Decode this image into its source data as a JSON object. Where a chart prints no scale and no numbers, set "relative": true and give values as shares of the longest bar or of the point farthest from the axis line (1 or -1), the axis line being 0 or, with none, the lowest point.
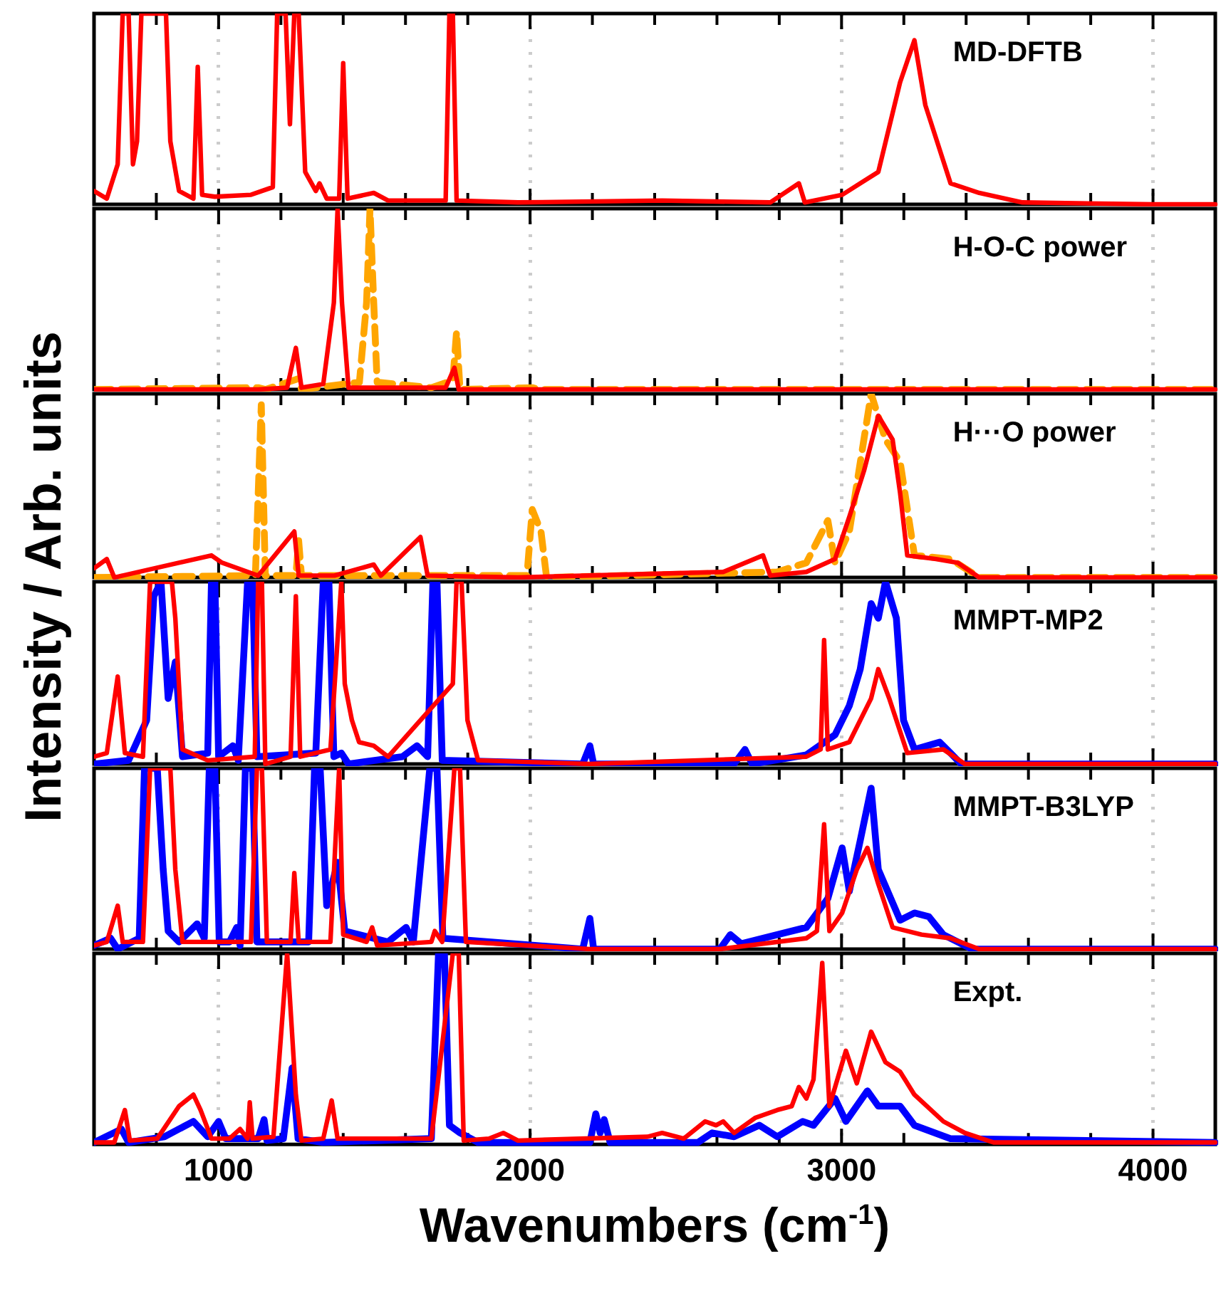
{
  "chart_data": [
    {
      "type": "line",
      "title": "MD-DFTB",
      "ylabel": "Intensity / Arb. units",
      "relative": true,
      "xlim": [
        600,
        4200
      ],
      "xticks": [
        {
          "value": 800,
          "label": null
        },
        1000,
        {
          "value": 1200,
          "label": null
        },
        {
          "value": 1400,
          "label": null
        },
        {
          "value": 1600,
          "label": null
        },
        {
          "value": 1800,
          "label": null
        },
        2000,
        {
          "value": 2200,
          "label": null
        },
        {
          "value": 2400,
          "label": null
        },
        {
          "value": 2600,
          "label": null
        },
        {
          "value": 2800,
          "label": null
        },
        3000,
        {
          "value": 3200,
          "label": null
        },
        {
          "value": 3400,
          "label": null
        },
        {
          "value": 3600,
          "label": null
        },
        {
          "value": 3800,
          "label": null
        },
        4000
      ],
      "tick_labels": false,
      "grid": "x",
      "series": [
        {
          "color": "#ff0000",
          "x": [
            600,
            641,
            676,
            692,
            711,
            725,
            738,
            752,
            766,
            831,
            845,
            873,
            919,
            933,
            947,
            988,
            1104,
            1174,
            1188,
            1215,
            1229,
            1243,
            1257,
            1278,
            1312,
            1324,
            1347,
            1387,
            1400,
            1414,
            1498,
            1544,
            1729,
            1741,
            1752,
            1764,
            1961,
            2424,
            2771,
            2863,
            2882,
            3002,
            3118,
            3188,
            3234,
            3269,
            3350,
            3442,
            3581,
            3998,
            4200
          ],
          "values": [
            0.07,
            0.03,
            0.21,
            1,
            1,
            0.21,
            0.33,
            1,
            1,
            1,
            0.33,
            0.07,
            0.03,
            0.72,
            0.05,
            0.04,
            0.05,
            0.09,
            1,
            1,
            0.42,
            1,
            1,
            0.17,
            0.07,
            0.11,
            0.03,
            0.03,
            0.74,
            0.03,
            0.06,
            0.02,
            0.02,
            1,
            1,
            0.02,
            0.01,
            0.02,
            0.01,
            0.11,
            0.01,
            0.05,
            0.17,
            0.64,
            0.86,
            0.52,
            0.11,
            0.06,
            0.01,
            0,
            0
          ]
        }
      ]
    },
    {
      "type": "line",
      "title": "H-O-C power",
      "relative": true,
      "xlim": [
        600,
        4200
      ],
      "xticks": [
        {
          "value": 800,
          "label": null
        },
        1000,
        {
          "value": 1200,
          "label": null
        },
        {
          "value": 1400,
          "label": null
        },
        {
          "value": 1600,
          "label": null
        },
        {
          "value": 1800,
          "label": null
        },
        2000,
        {
          "value": 2200,
          "label": null
        },
        {
          "value": 2400,
          "label": null
        },
        {
          "value": 2600,
          "label": null
        },
        {
          "value": 2800,
          "label": null
        },
        3000,
        {
          "value": 3200,
          "label": null
        },
        {
          "value": 3400,
          "label": null
        },
        {
          "value": 3600,
          "label": null
        },
        {
          "value": 3800,
          "label": null
        },
        4000
      ],
      "tick_labels": false,
      "grid": "x",
      "series": [
        {
          "color": "#ff0000",
          "x": [
            600,
            1127,
            1220,
            1248,
            1266,
            1336,
            1370,
            1382,
            1396,
            1417,
            1498,
            1729,
            1757,
            1771,
            2007,
            4200
          ],
          "values": [
            0,
            0,
            0.01,
            0.23,
            0.01,
            0.03,
            0.48,
            1,
            0.48,
            0.01,
            0.01,
            0.01,
            0.12,
            0,
            0,
            0
          ]
        },
        {
          "color": "#ffa500",
          "line_style": "dashed",
          "x": [
            600,
            1127,
            1150,
            1257,
            1266,
            1452,
            1475,
            1486,
            1498,
            1509,
            1683,
            1752,
            1764,
            1775,
            2007,
            2030,
            4200
          ],
          "values": [
            0,
            0.01,
            0,
            0.06,
            0,
            0.04,
            0.48,
            1,
            0.48,
            0.04,
            0.01,
            0.05,
            0.32,
            0,
            0.01,
            0,
            0
          ]
        }
      ]
    },
    {
      "type": "line",
      "title": "H···O power",
      "relative": true,
      "xlim": [
        600,
        4200
      ],
      "xticks": [
        {
          "value": 800,
          "label": null
        },
        1000,
        {
          "value": 1200,
          "label": null
        },
        {
          "value": 1400,
          "label": null
        },
        {
          "value": 1600,
          "label": null
        },
        {
          "value": 1800,
          "label": null
        },
        2000,
        {
          "value": 2200,
          "label": null
        },
        {
          "value": 2400,
          "label": null
        },
        {
          "value": 2600,
          "label": null
        },
        {
          "value": 2800,
          "label": null
        },
        3000,
        {
          "value": 3200,
          "label": null
        },
        {
          "value": 3400,
          "label": null
        },
        {
          "value": 3600,
          "label": null
        },
        {
          "value": 3800,
          "label": null
        },
        4000
      ],
      "tick_labels": false,
      "grid": "x",
      "series": [
        {
          "color": "#ff0000",
          "x": [
            600,
            641,
            665,
            977,
            1011,
            1127,
            1243,
            1257,
            1372,
            1498,
            1521,
            1648,
            1671,
            1961,
            2620,
            2748,
            2771,
            2887,
            2979,
            3025,
            3072,
            3118,
            3164,
            3188,
            3211,
            3303,
            3373,
            3442,
            4200
          ],
          "values": [
            0.05,
            0.1,
            0,
            0.12,
            0.08,
            0.01,
            0.25,
            0.01,
            0.01,
            0.07,
            0.01,
            0.22,
            0.01,
            0,
            0.03,
            0.12,
            0.01,
            0.03,
            0.1,
            0.33,
            0.58,
            0.88,
            0.75,
            0.46,
            0.12,
            0.1,
            0.08,
            0,
            0
          ]
        },
        {
          "color": "#ffa500",
          "line_style": "dashed",
          "x": [
            600,
            1118,
            1137,
            1150,
            1248,
            1257,
            1266,
            1990,
            2007,
            2035,
            2053,
            2794,
            2887,
            2956,
            2979,
            3025,
            3095,
            3141,
            3188,
            3234,
            3350,
            3442,
            4200
          ],
          "values": [
            0,
            0.01,
            0.94,
            0.01,
            0.01,
            0.2,
            0.01,
            0.01,
            0.37,
            0.25,
            0,
            0.03,
            0.08,
            0.31,
            0.08,
            0.25,
            1,
            0.75,
            0.63,
            0.12,
            0.1,
            0,
            0
          ]
        }
      ]
    },
    {
      "type": "line",
      "title": "MMPT-MP2",
      "relative": true,
      "xlim": [
        600,
        4200
      ],
      "xticks": [
        {
          "value": 800,
          "label": null
        },
        1000,
        {
          "value": 1200,
          "label": null
        },
        {
          "value": 1400,
          "label": null
        },
        {
          "value": 1600,
          "label": null
        },
        {
          "value": 1800,
          "label": null
        },
        2000,
        {
          "value": 2200,
          "label": null
        },
        {
          "value": 2400,
          "label": null
        },
        {
          "value": 2600,
          "label": null
        },
        {
          "value": 2800,
          "label": null
        },
        3000,
        {
          "value": 3200,
          "label": null
        },
        {
          "value": 3400,
          "label": null
        },
        {
          "value": 3600,
          "label": null
        },
        {
          "value": 3800,
          "label": null
        },
        4000
      ],
      "tick_labels": false,
      "grid": "x",
      "series": [
        {
          "color": "#ff0000",
          "x": [
            600,
            641,
            676,
            699,
            757,
            780,
            803,
            850,
            861,
            884,
            965,
            1116,
            1127,
            1139,
            1150,
            1231,
            1248,
            1262,
            1359,
            1394,
            1405,
            1428,
            1451,
            1498,
            1544,
            1752,
            1764,
            1780,
            1799,
            1833,
            2192,
            2887,
            2933,
            2944,
            2956,
            3025,
            3095,
            3118,
            3153,
            3211,
            3327,
            3396,
            4200
          ],
          "values": [
            0.04,
            0.06,
            0.48,
            0.06,
            0.04,
            1,
            1,
            1,
            0.8,
            0.08,
            0.02,
            0.04,
            1,
            1,
            0,
            0.04,
            0.92,
            0.04,
            0.08,
            1,
            0.44,
            0.24,
            0.12,
            0.1,
            0.04,
            0.44,
            1,
            1,
            0.24,
            0.02,
            0,
            0.04,
            0.08,
            0.68,
            0.08,
            0.12,
            0.36,
            0.52,
            0.36,
            0.06,
            0.08,
            0,
            0
          ]
        },
        {
          "color": "#0000ff",
          "x": [
            600,
            711,
            769,
            792,
            815,
            838,
            861,
            884,
            965,
            977,
            988,
            1000,
            1046,
            1063,
            1093,
            1109,
            1123,
            1312,
            1336,
            1354,
            1370,
            1394,
            1417,
            1590,
            1637,
            1671,
            1688,
            1701,
            1718,
            2169,
            2192,
            2204,
            2655,
            2690,
            2713,
            2887,
            2979,
            3025,
            3060,
            3095,
            3118,
            3141,
            3176,
            3199,
            3234,
            3315,
            3350,
            3384,
            4200
          ],
          "values": [
            0,
            0.02,
            0.24,
            0.92,
            1,
            0.36,
            0.56,
            0.04,
            0.06,
            1,
            1,
            0.04,
            0.1,
            0.02,
            1,
            1,
            0.04,
            0.06,
            1,
            1,
            0.04,
            0.06,
            0,
            0.04,
            0.1,
            0.04,
            1,
            1,
            0.02,
            0,
            0.1,
            0,
            0,
            0.08,
            0,
            0.05,
            0.16,
            0.32,
            0.52,
            0.88,
            0.8,
            1,
            0.8,
            0.24,
            0.08,
            0.12,
            0.06,
            0,
            0
          ]
        }
      ]
    },
    {
      "type": "line",
      "title": "MMPT-B3LYP",
      "relative": true,
      "xlim": [
        600,
        4200
      ],
      "xticks": [
        {
          "value": 800,
          "label": null
        },
        1000,
        {
          "value": 1200,
          "label": null
        },
        {
          "value": 1400,
          "label": null
        },
        {
          "value": 1600,
          "label": null
        },
        {
          "value": 1800,
          "label": null
        },
        2000,
        {
          "value": 2200,
          "label": null
        },
        {
          "value": 2400,
          "label": null
        },
        {
          "value": 2600,
          "label": null
        },
        {
          "value": 2800,
          "label": null
        },
        3000,
        {
          "value": 3200,
          "label": null
        },
        {
          "value": 3400,
          "label": null
        },
        {
          "value": 3600,
          "label": null
        },
        {
          "value": 3800,
          "label": null
        },
        4000
      ],
      "tick_labels": false,
      "grid": "x",
      "series": [
        {
          "color": "#ff0000",
          "x": [
            600,
            641,
            676,
            692,
            757,
            780,
            826,
            845,
            861,
            884,
            1104,
            1123,
            1139,
            1155,
            1231,
            1243,
            1257,
            1359,
            1387,
            1400,
            1475,
            1493,
            1509,
            1683,
            1694,
            1718,
            1757,
            1775,
            1794,
            2192,
            2609,
            2887,
            2921,
            2944,
            2961,
            3002,
            3049,
            3083,
            3118,
            3164,
            3257,
            3350,
            3442,
            4200
          ],
          "values": [
            0.02,
            0.04,
            0.24,
            0.04,
            0.04,
            1,
            1,
            1,
            0.44,
            0.04,
            0.04,
            1,
            1,
            0.04,
            0.04,
            0.42,
            0.04,
            0.04,
            1,
            0.08,
            0.04,
            0.12,
            0.02,
            0.04,
            0.1,
            0.04,
            1,
            1,
            0.04,
            0,
            0,
            0.06,
            0.1,
            0.69,
            0.1,
            0.2,
            0.44,
            0.56,
            0.36,
            0.12,
            0.08,
            0.06,
            0,
            0
          ]
        },
        {
          "color": "#0000ff",
          "x": [
            600,
            653,
            676,
            745,
            762,
            803,
            822,
            838,
            873,
            931,
            954,
            970,
            988,
            1002,
            1035,
            1058,
            1069,
            1086,
            1109,
            1123,
            1289,
            1308,
            1326,
            1347,
            1382,
            1405,
            1544,
            1602,
            1625,
            1678,
            1701,
            1720,
            2169,
            2192,
            2204,
            2609,
            2643,
            2678,
            2887,
            2956,
            3002,
            3025,
            3060,
            3095,
            3118,
            3188,
            3234,
            3280,
            3327,
            3419,
            4200
          ],
          "values": [
            0.02,
            0.06,
            0,
            0.06,
            1,
            1,
            0.44,
            0.1,
            0.04,
            0.14,
            0.06,
            1,
            1,
            0.04,
            0.04,
            0.12,
            0.02,
            1,
            1,
            0.04,
            0.04,
            1,
            1,
            0.24,
            0.48,
            0.1,
            0.04,
            0.12,
            0.04,
            1,
            1,
            0.06,
            0,
            0.17,
            0,
            0,
            0.08,
            0.03,
            0.12,
            0.28,
            0.56,
            0.32,
            0.6,
            0.89,
            0.44,
            0.16,
            0.2,
            0.18,
            0.08,
            0,
            0
          ]
        }
      ]
    },
    {
      "type": "line",
      "title": "Expt.",
      "xlabel": "Wavenumbers (cm$^{-1}$)",
      "relative": true,
      "xlim": [
        600,
        4200
      ],
      "xticks": [
        {
          "value": 800,
          "label": null
        },
        1000,
        {
          "value": 1200,
          "label": null
        },
        {
          "value": 1400,
          "label": null
        },
        {
          "value": 1600,
          "label": null
        },
        {
          "value": 1800,
          "label": null
        },
        2000,
        {
          "value": 2200,
          "label": null
        },
        {
          "value": 2400,
          "label": null
        },
        {
          "value": 2600,
          "label": null
        },
        {
          "value": 2800,
          "label": null
        },
        3000,
        {
          "value": 3200,
          "label": null
        },
        {
          "value": 3400,
          "label": null
        },
        {
          "value": 3600,
          "label": null
        },
        {
          "value": 3800,
          "label": null
        },
        4000
      ],
      "tick_labels": "x",
      "grid": "x",
      "series": [
        {
          "color": "#ff0000",
          "x": [
            600,
            665,
            699,
            715,
            803,
            873,
            919,
            942,
            977,
            1035,
            1069,
            1093,
            1100,
            1109,
            1176,
            1220,
            1248,
            1266,
            1336,
            1363,
            1382,
            1683,
            1752,
            1771,
            1787,
            1868,
            1914,
            1961,
            2377,
            2424,
            2493,
            2562,
            2597,
            2620,
            2655,
            2724,
            2794,
            2840,
            2863,
            2887,
            2910,
            2938,
            2961,
            3014,
            3049,
            3095,
            3141,
            3188,
            3234,
            3327,
            3396,
            3488,
            4200
          ],
          "values": [
            0.01,
            0.01,
            0.18,
            0.02,
            0.03,
            0.2,
            0.26,
            0.18,
            0.03,
            0.03,
            0.08,
            0.03,
            0.22,
            0.03,
            0.04,
            1,
            0.26,
            0.02,
            0.03,
            0.23,
            0.03,
            0.03,
            1,
            1,
            0.02,
            0.03,
            0.06,
            0.02,
            0.04,
            0.06,
            0.03,
            0.12,
            0.1,
            0.12,
            0.06,
            0.14,
            0.18,
            0.2,
            0.3,
            0.24,
            0.34,
            0.95,
            0.2,
            0.49,
            0.32,
            0.59,
            0.43,
            0.38,
            0.26,
            0.12,
            0.06,
            0.01,
            0.01
          ]
        },
        {
          "color": "#0000ff",
          "x": [
            600,
            688,
            711,
            826,
            919,
            965,
            1000,
            1023,
            1127,
            1146,
            1155,
            1208,
            1236,
            1255,
            1336,
            1683,
            1706,
            1725,
            1741,
            1775,
            1833,
            2192,
            2211,
            2225,
            2238,
            2257,
            2539,
            2585,
            2655,
            2736,
            2794,
            2875,
            2910,
            2979,
            3014,
            3083,
            3118,
            3188,
            3234,
            3350,
            4200
          ],
          "values": [
            0.01,
            0.08,
            0.01,
            0.04,
            0.12,
            0.04,
            0.12,
            0.03,
            0.03,
            0.13,
            0.02,
            0.03,
            0.4,
            0.03,
            0.01,
            0.03,
            1,
            1,
            0.1,
            0.06,
            0.01,
            0.01,
            0.16,
            0.06,
            0.13,
            0.01,
            0.01,
            0.06,
            0.04,
            0.1,
            0.04,
            0.12,
            0.1,
            0.24,
            0.12,
            0.28,
            0.2,
            0.2,
            0.1,
            0.03,
            0.01
          ]
        }
      ]
    }
  ]
}
